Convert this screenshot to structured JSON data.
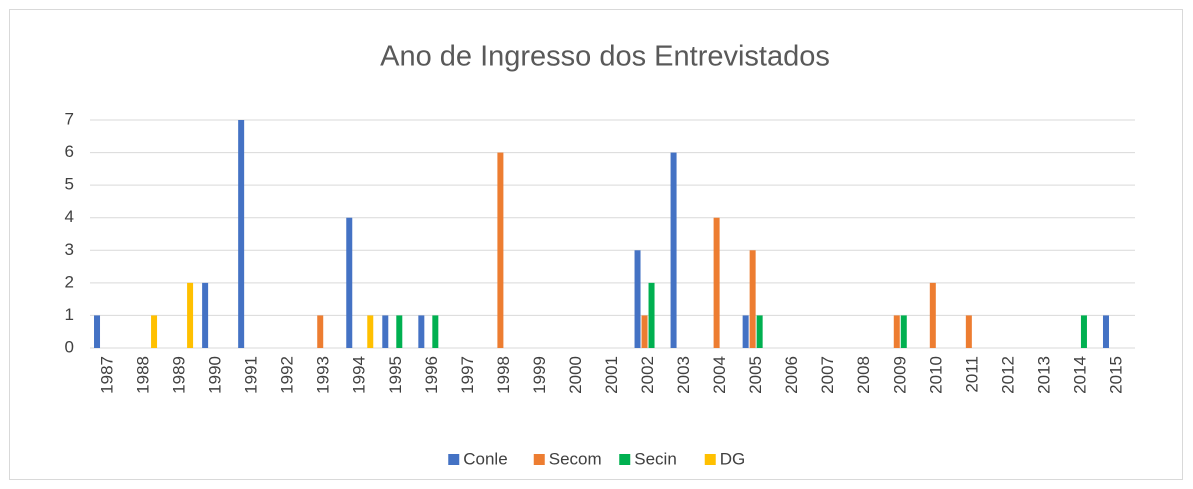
{
  "chart_data": {
    "type": "bar",
    "title": "Ano de Ingresso dos Entrevistados",
    "categories": [
      "1987",
      "1988",
      "1989",
      "1990",
      "1991",
      "1992",
      "1993",
      "1994",
      "1995",
      "1996",
      "1997",
      "1998",
      "1999",
      "2000",
      "2001",
      "2002",
      "2003",
      "2004",
      "2005",
      "2006",
      "2007",
      "2008",
      "2009",
      "2010",
      "2011",
      "2012",
      "2013",
      "2014",
      "2015"
    ],
    "series": [
      {
        "name": "Conle",
        "color": "#4472c4",
        "values": [
          1,
          0,
          0,
          2,
          7,
          0,
          0,
          4,
          1,
          1,
          0,
          0,
          0,
          0,
          0,
          3,
          6,
          0,
          1,
          0,
          0,
          0,
          0,
          0,
          0,
          0,
          0,
          0,
          1
        ]
      },
      {
        "name": "Secom",
        "color": "#ed7d31",
        "values": [
          0,
          0,
          0,
          0,
          0,
          0,
          1,
          0,
          0,
          0,
          0,
          6,
          0,
          0,
          0,
          1,
          0,
          4,
          3,
          0,
          0,
          0,
          1,
          2,
          1,
          0,
          0,
          0,
          0
        ]
      },
      {
        "name": "Secin",
        "color": "#00b050",
        "values": [
          0,
          0,
          0,
          0,
          0,
          0,
          0,
          0,
          1,
          1,
          0,
          0,
          0,
          0,
          0,
          2,
          0,
          0,
          1,
          0,
          0,
          0,
          1,
          0,
          0,
          0,
          0,
          1,
          0
        ]
      },
      {
        "name": "DG",
        "color": "#ffc000",
        "values": [
          0,
          1,
          2,
          0,
          0,
          0,
          0,
          1,
          0,
          0,
          0,
          0,
          0,
          0,
          0,
          0,
          0,
          0,
          0,
          0,
          0,
          0,
          0,
          0,
          0,
          0,
          0,
          0,
          0
        ]
      }
    ],
    "ylim": [
      0,
      7
    ],
    "yticks": [
      0,
      1,
      2,
      3,
      4,
      5,
      6,
      7
    ],
    "grid": true,
    "legend": "bottom"
  }
}
